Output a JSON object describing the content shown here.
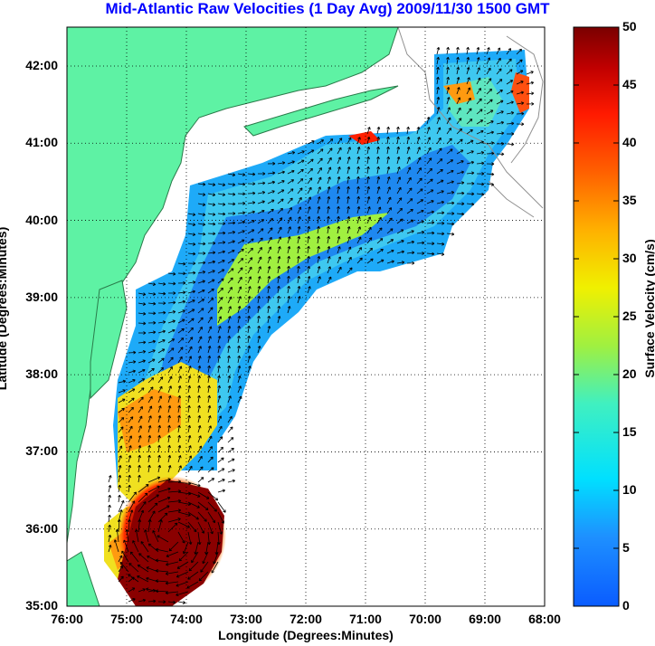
{
  "title": "Mid-Atlantic Raw Velocities (1 Day Avg) 2009/11/30 1500 GMT",
  "axes": {
    "xlabel": "Longitude (Degrees:Minutes)",
    "ylabel": "Latitude (Degrees:Minutes)",
    "xticks": [
      "76:00",
      "75:00",
      "74:00",
      "73:00",
      "72:00",
      "71:00",
      "70:00",
      "69:00",
      "68:00"
    ],
    "yticks": [
      "42:00",
      "41:00",
      "40:00",
      "39:00",
      "38:00",
      "37:00",
      "36:00",
      "35:00"
    ]
  },
  "colorbar": {
    "label": "Surface Velocity (cm/s)",
    "ticks": [
      "50",
      "45",
      "40",
      "35",
      "30",
      "25",
      "20",
      "15",
      "10",
      "5",
      "0"
    ],
    "range": [
      0,
      50
    ]
  },
  "colors": {
    "title": "#0000ff",
    "land": "#5ef2a4",
    "grid": "#000000"
  }
}
